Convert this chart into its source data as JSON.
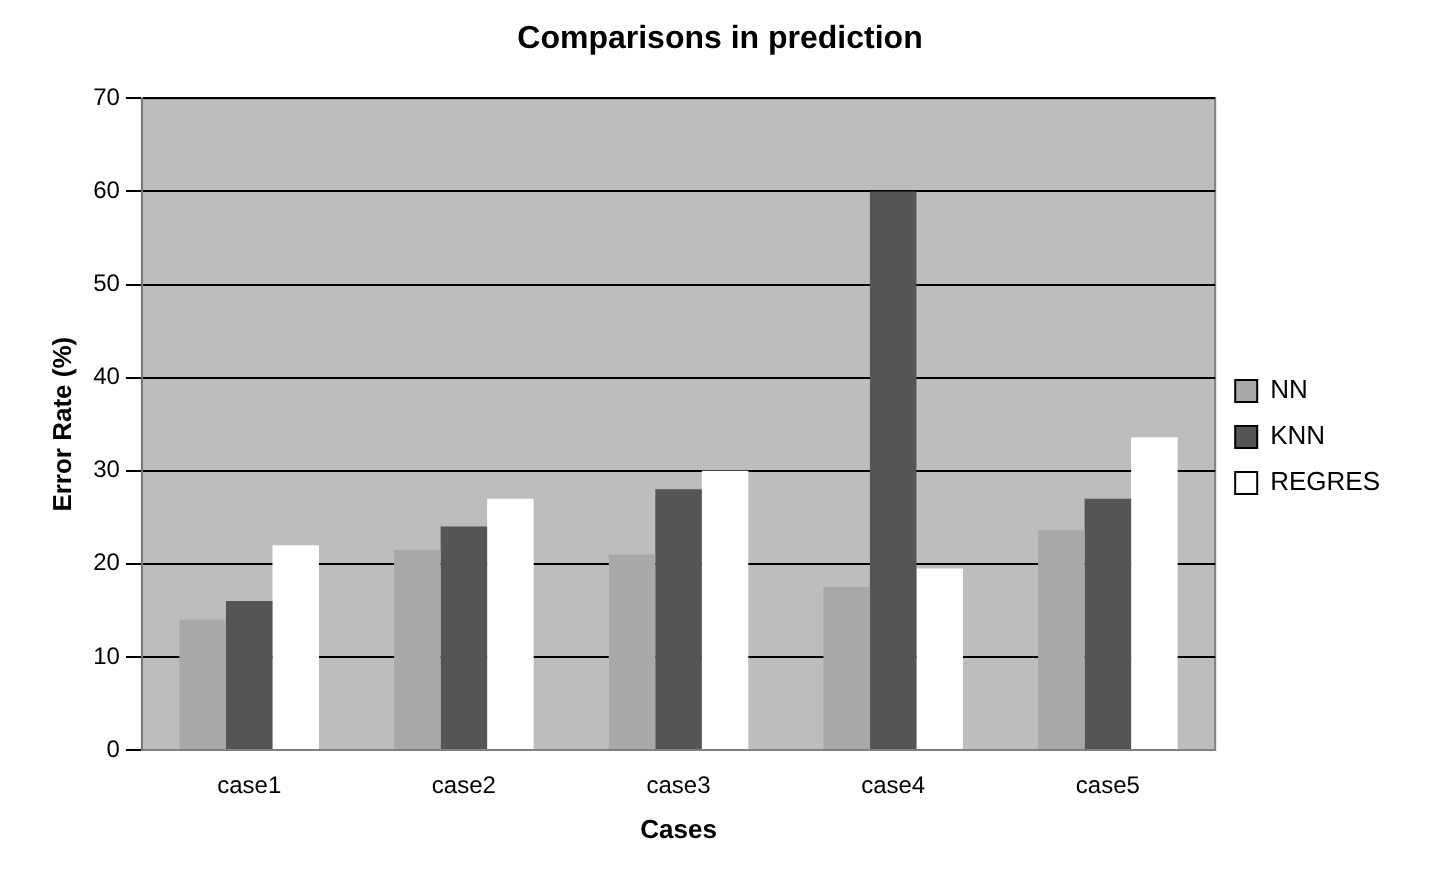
{
  "chart_data": {
    "type": "bar",
    "title": "Comparisons in prediction",
    "xlabel": "Cases",
    "ylabel": "Error Rate (%)",
    "categories": [
      "case1",
      "case2",
      "case3",
      "case4",
      "case5"
    ],
    "series": [
      {
        "name": "NN",
        "color": "#a8a8a8",
        "values": [
          14,
          21.5,
          21,
          17.5,
          23.6
        ]
      },
      {
        "name": "KNN",
        "color": "#555555",
        "values": [
          16,
          24,
          28,
          60,
          27
        ]
      },
      {
        "name": "REGRES",
        "color": "#ffffff",
        "values": [
          22,
          27,
          30,
          19.5,
          33.6
        ]
      }
    ],
    "ylim": [
      0,
      70
    ],
    "yticks": [
      0,
      10,
      20,
      30,
      40,
      50,
      60,
      70
    ],
    "grid": "y",
    "legend": "right"
  }
}
